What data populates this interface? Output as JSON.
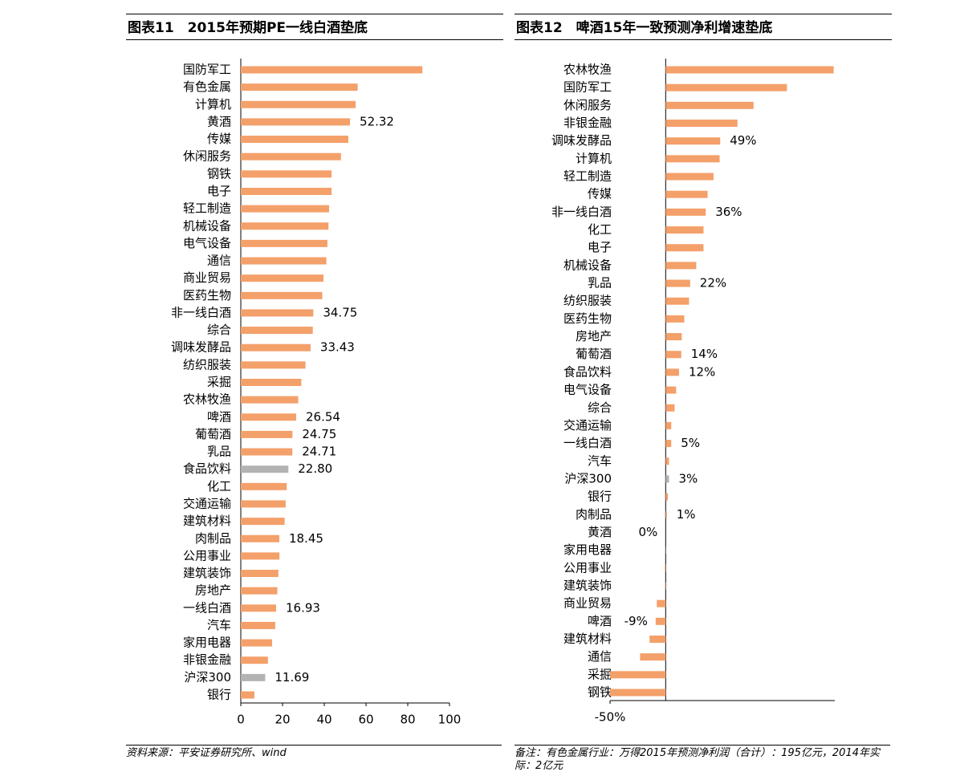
{
  "chart_data": [
    {
      "type": "bar",
      "orientation": "horizontal",
      "title": "图表11　2015年预期PE一线白酒垫底",
      "categories": [
        "国防军工",
        "有色金属",
        "计算机",
        "黄酒",
        "传媒",
        "休闲服务",
        "钢铁",
        "电子",
        "轻工制造",
        "机械设备",
        "电气设备",
        "通信",
        "商业贸易",
        "医药生物",
        "非一线白酒",
        "综合",
        "调味发酵品",
        "纺织服装",
        "采掘",
        "农林牧渔",
        "啤酒",
        "葡萄酒",
        "乳品",
        "食品饮料",
        "化工",
        "交通运输",
        "建筑材料",
        "肉制品",
        "公用事业",
        "建筑装饰",
        "房地产",
        "一线白酒",
        "汽车",
        "家用电器",
        "非银金融",
        "沪深300",
        "银行"
      ],
      "values": [
        87,
        56,
        55,
        52.32,
        51.5,
        48,
        43.5,
        43.5,
        42.3,
        42,
        41.5,
        41,
        39.6,
        39,
        34.75,
        34.5,
        33.43,
        31,
        29,
        27.5,
        26.54,
        24.75,
        24.71,
        22.8,
        22,
        21.5,
        21,
        18.45,
        18.5,
        18,
        17.5,
        16.93,
        16.5,
        15,
        13,
        11.69,
        6.5
      ],
      "value_labels": [
        null,
        null,
        null,
        "52.32",
        null,
        null,
        null,
        null,
        null,
        null,
        null,
        null,
        null,
        null,
        "34.75",
        null,
        "33.43",
        null,
        null,
        null,
        "26.54",
        "24.75",
        "24.71",
        "22.80",
        null,
        null,
        null,
        "18.45",
        null,
        null,
        null,
        "16.93",
        null,
        null,
        null,
        "11.69",
        null
      ],
      "colors": [
        "#f4a06a",
        "#f4a06a",
        "#f4a06a",
        "#f4a06a",
        "#f4a06a",
        "#f4a06a",
        "#f4a06a",
        "#f4a06a",
        "#f4a06a",
        "#f4a06a",
        "#f4a06a",
        "#f4a06a",
        "#f4a06a",
        "#f4a06a",
        "#f4a06a",
        "#f4a06a",
        "#f4a06a",
        "#f4a06a",
        "#f4a06a",
        "#f4a06a",
        "#f4a06a",
        "#f4a06a",
        "#f4a06a",
        "#b3b3b3",
        "#f4a06a",
        "#f4a06a",
        "#f4a06a",
        "#f4a06a",
        "#f4a06a",
        "#f4a06a",
        "#f4a06a",
        "#f4a06a",
        "#f4a06a",
        "#f4a06a",
        "#f4a06a",
        "#b3b3b3",
        "#f4a06a"
      ],
      "xlim": [
        0,
        100
      ],
      "xticks": [
        0,
        20,
        40,
        60,
        80,
        100
      ],
      "source": "资料来源：平安证券研究所、wind"
    },
    {
      "type": "bar",
      "orientation": "horizontal",
      "title": "图表12　啤酒15年一致预测净利增速垫底",
      "categories": [
        "农林牧渔",
        "国防军工",
        "休闲服务",
        "非银金融",
        "调味发酵品",
        "计算机",
        "轻工制造",
        "传媒",
        "非一线白酒",
        "化工",
        "电子",
        "机械设备",
        "乳品",
        "纺织服装",
        "医药生物",
        "房地产",
        "葡萄酒",
        "食品饮料",
        "电气设备",
        "综合",
        "交通运输",
        "一线白酒",
        "汽车",
        "沪深300",
        "银行",
        "肉制品",
        "黄酒",
        "家用电器",
        "公用事业",
        "建筑装饰",
        "商业贸易",
        "啤酒",
        "建筑材料",
        "通信",
        "采掘",
        "钢铁"
      ],
      "values": [
        151,
        109,
        79,
        64.5,
        49,
        48.5,
        43,
        37.7,
        36,
        34,
        34,
        27.5,
        22,
        21,
        16.7,
        14.5,
        14,
        12,
        9.4,
        8,
        5,
        5,
        3,
        3,
        2,
        1,
        0,
        -0.2,
        -0.7,
        -0.5,
        -8,
        -9,
        -14.5,
        -23,
        -50,
        -50
      ],
      "value_labels": [
        null,
        null,
        null,
        null,
        "49%",
        null,
        null,
        null,
        "36%",
        null,
        null,
        null,
        "22%",
        null,
        null,
        null,
        "14%",
        "12%",
        null,
        null,
        null,
        "5%",
        null,
        "3%",
        null,
        "1%",
        "0%",
        null,
        null,
        null,
        null,
        "-9%",
        null,
        null,
        null,
        null
      ],
      "colors": [
        "#f4a06a",
        "#f4a06a",
        "#f4a06a",
        "#f4a06a",
        "#f4a06a",
        "#f4a06a",
        "#f4a06a",
        "#f4a06a",
        "#f4a06a",
        "#f4a06a",
        "#f4a06a",
        "#f4a06a",
        "#f4a06a",
        "#f4a06a",
        "#f4a06a",
        "#f4a06a",
        "#f4a06a",
        "#f4a06a",
        "#f4a06a",
        "#f4a06a",
        "#f4a06a",
        "#f4a06a",
        "#f4a06a",
        "#b3b3b3",
        "#f4a06a",
        "#f4a06a",
        "#f4a06a",
        "#f4a06a",
        "#f4a06a",
        "#f4a06a",
        "#f4a06a",
        "#f4a06a",
        "#f4a06a",
        "#f4a06a",
        "#f4a06a",
        "#f4a06a"
      ],
      "xlim": [
        -50,
        152
      ],
      "xticks": [
        {
          "value": -50,
          "label": "-50%"
        }
      ],
      "source": "备注：有色金属行业：万得2015年预测净利润（合计）：195亿元，2014年实际：2亿元"
    }
  ]
}
